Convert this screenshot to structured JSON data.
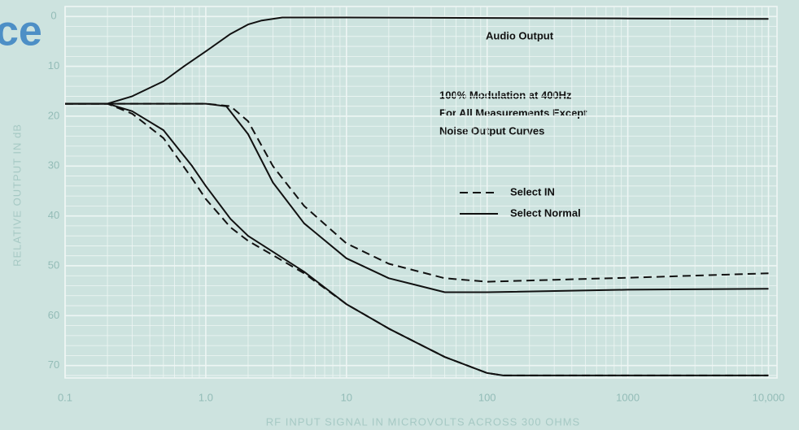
{
  "chart_data": {
    "type": "line",
    "fragment": "ce",
    "ylabel": "RELATIVE OUTPUT IN dB",
    "xlabel": "RF INPUT SIGNAL IN MICROVOLTS ACROSS 300 OHMS",
    "annotations": [
      "100% Modulation at 400Hz",
      "For All Measurements Except",
      "Noise Output Curves"
    ],
    "xscale": "log",
    "y_inverted": true,
    "xlim": [
      0.1,
      11500
    ],
    "ylim": [
      -2,
      72.5
    ],
    "xticks": [
      0.1,
      {
        "value": 1,
        "label": "1.0"
      },
      10,
      100,
      1000,
      {
        "value": 10000,
        "label": "10,000"
      }
    ],
    "yticks": [
      0,
      10,
      20,
      30,
      40,
      50,
      60,
      70
    ],
    "grid": true,
    "minor_grid": true,
    "series": [
      {
        "name": "Select IN",
        "color": "#111111",
        "dashed": true,
        "x": [
          0.1,
          0.5,
          1,
          1.5,
          2,
          3,
          5,
          10,
          20,
          50,
          100,
          300,
          1000,
          10000
        ],
        "values": [
          17.5,
          17.5,
          17.5,
          18,
          21,
          30,
          38,
          45.5,
          49.6,
          52.5,
          53.2,
          52.8,
          52.4,
          51.5
        ]
      },
      {
        "name": "Select Normal",
        "color": "#111111",
        "dashed": false,
        "x": [
          0.1,
          0.5,
          1,
          1.4,
          2,
          3,
          5,
          10,
          20,
          50,
          100,
          1000,
          10000
        ],
        "values": [
          17.5,
          17.5,
          17.5,
          18,
          23.6,
          33.3,
          41.5,
          48.5,
          52.5,
          55.3,
          55.3,
          54.8,
          54.6
        ]
      },
      {
        "name": "Audio Output",
        "color": "#111111",
        "dashed": false,
        "x": [
          0.1,
          0.2,
          0.3,
          0.5,
          0.7,
          1,
          1.5,
          2,
          2.5,
          3.5,
          10,
          100,
          1000,
          10000
        ],
        "values": [
          17.5,
          17.5,
          16,
          13,
          10,
          7,
          3.5,
          1.6,
          0.8,
          0.2,
          0.2,
          0.3,
          0.4,
          0.5
        ]
      },
      {
        "color": "#111111",
        "dashed": true,
        "x": [
          0.1,
          0.2,
          0.3,
          0.5,
          0.8,
          1,
          1.5,
          2,
          5,
          10,
          20,
          50,
          100,
          130,
          10000
        ],
        "values": [
          17.5,
          17.5,
          19.5,
          24.4,
          32.5,
          36.6,
          42.3,
          45,
          51.5,
          57.7,
          62.6,
          68.3,
          71.5,
          72,
          72
        ]
      },
      {
        "color": "#111111",
        "dashed": false,
        "x": [
          0.1,
          0.2,
          0.3,
          0.5,
          0.8,
          1,
          1.5,
          2,
          5,
          10,
          20,
          50,
          100,
          130,
          10000
        ],
        "values": [
          17.5,
          17.5,
          19,
          22.8,
          30,
          34,
          40.6,
          44,
          51.2,
          57.7,
          62.6,
          68.3,
          71.5,
          72,
          72
        ]
      }
    ]
  }
}
